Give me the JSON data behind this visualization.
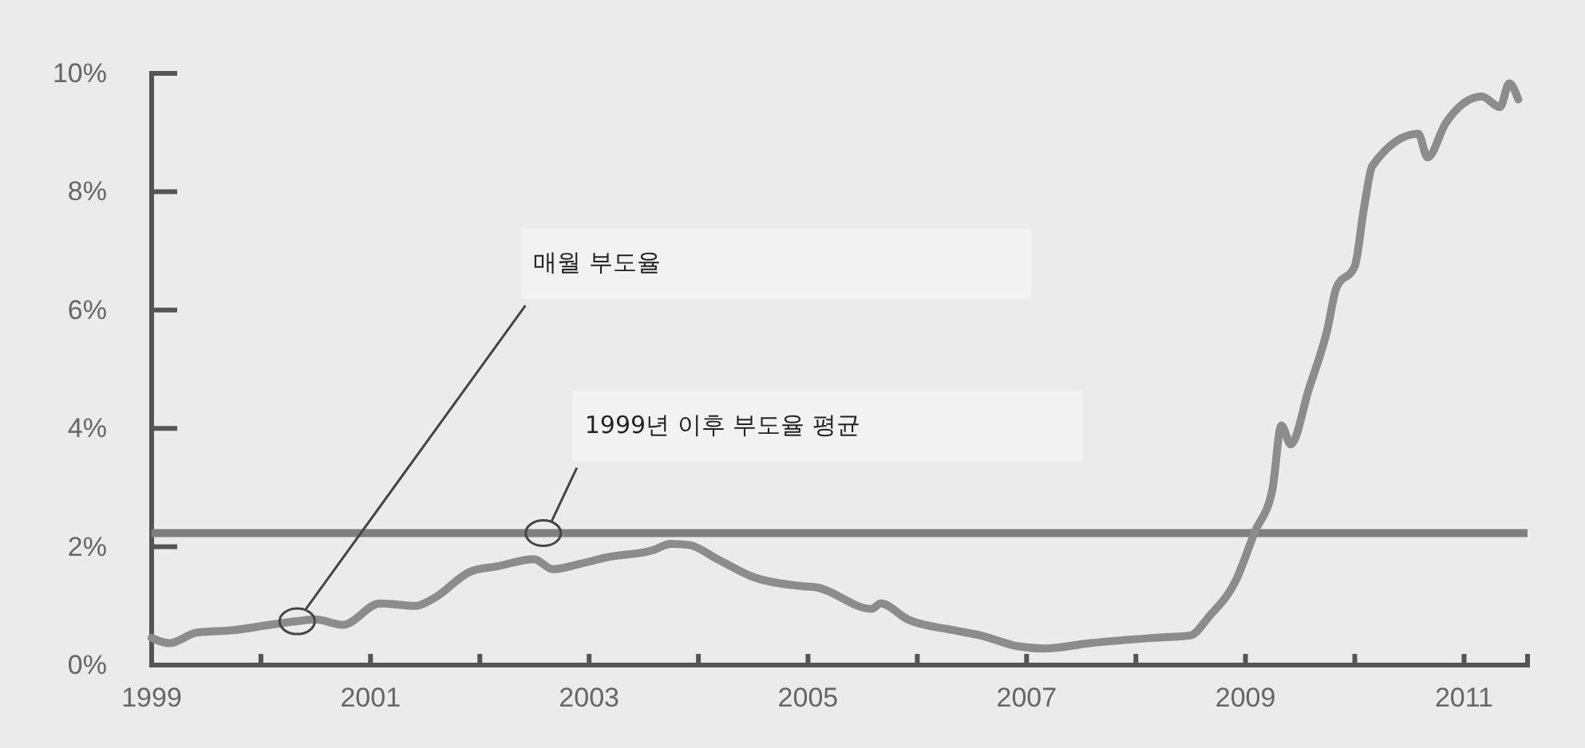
{
  "chart_data": {
    "type": "line",
    "x": [
      "1999-01",
      "1999-03",
      "1999-06",
      "1999-10",
      "2000-02",
      "2000-05",
      "2000-07",
      "2000-10",
      "2001-02",
      "2001-06",
      "2001-08",
      "2001-12",
      "2002-03",
      "2002-07",
      "2002-09",
      "2002-12",
      "2003-03",
      "2003-08",
      "2003-10",
      "2003-12",
      "2004-03",
      "2004-07",
      "2004-12",
      "2005-02",
      "2005-08",
      "2005-09",
      "2005-12",
      "2006-05",
      "2006-08",
      "2006-12",
      "2007-03",
      "2007-08",
      "2008-03",
      "2008-07",
      "2008-09",
      "2008-12",
      "2009-02",
      "2009-04",
      "2009-05",
      "2009-06",
      "2009-08",
      "2009-10",
      "2009-11",
      "2010-01",
      "2010-02",
      "2010-03",
      "2010-08",
      "2010-09",
      "2010-11",
      "2011-03",
      "2011-05",
      "2011-06",
      "2011-07"
    ],
    "series": [
      {
        "color": "#8c8c8c",
        "values": [
          0.46,
          0.37,
          0.55,
          0.59,
          0.68,
          0.74,
          0.77,
          0.68,
          1.04,
          1.0,
          1.13,
          1.58,
          1.67,
          1.79,
          1.62,
          1.71,
          1.82,
          1.94,
          2.05,
          2.03,
          1.8,
          1.49,
          1.34,
          1.31,
          0.95,
          1.04,
          0.77,
          0.59,
          0.5,
          0.32,
          0.28,
          0.37,
          0.46,
          0.5,
          0.82,
          1.44,
          2.25,
          2.97,
          4.05,
          3.73,
          4.67,
          5.66,
          6.38,
          6.74,
          7.73,
          8.44,
          8.98,
          8.58,
          9.16,
          9.61,
          9.43,
          9.83,
          9.56
        ]
      }
    ],
    "xlim": [
      "1999-01",
      "2011-08"
    ],
    "xticks": [
      {
        "value": "1999",
        "label": "1999"
      },
      {
        "value": "2000",
        "label": null
      },
      {
        "value": "2001",
        "label": "2001"
      },
      {
        "value": "2002",
        "label": null
      },
      {
        "value": "2003",
        "label": "2003"
      },
      {
        "value": "2004",
        "label": null
      },
      {
        "value": "2005",
        "label": "2005"
      },
      {
        "value": "2006",
        "label": null
      },
      {
        "value": "2007",
        "label": "2007"
      },
      {
        "value": "2008",
        "label": null
      },
      {
        "value": "2009",
        "label": "2009"
      },
      {
        "value": "2010",
        "label": null
      },
      {
        "value": "2011",
        "label": "2011"
      }
    ],
    "ylim": [
      0,
      10
    ],
    "yticks": [
      {
        "value": 0,
        "label": "0%"
      },
      {
        "value": 2,
        "label": "2%"
      },
      {
        "value": 4,
        "label": "4%"
      },
      {
        "value": 6,
        "label": "6%"
      },
      {
        "value": 8,
        "label": "8%"
      },
      {
        "value": 10,
        "label": "10%"
      }
    ],
    "ref_lines": [
      {
        "axis": "y",
        "value": 2.23,
        "color": "#7f7f7f"
      }
    ],
    "annotations": [
      {
        "text": "매월 부도율",
        "x": "2000-05",
        "y": 0.74
      },
      {
        "text": "1999년 이후 부도율 평균",
        "x": "2002-08",
        "y": 2.23
      }
    ],
    "grid": false,
    "marker": "none",
    "line_style": "solid"
  }
}
